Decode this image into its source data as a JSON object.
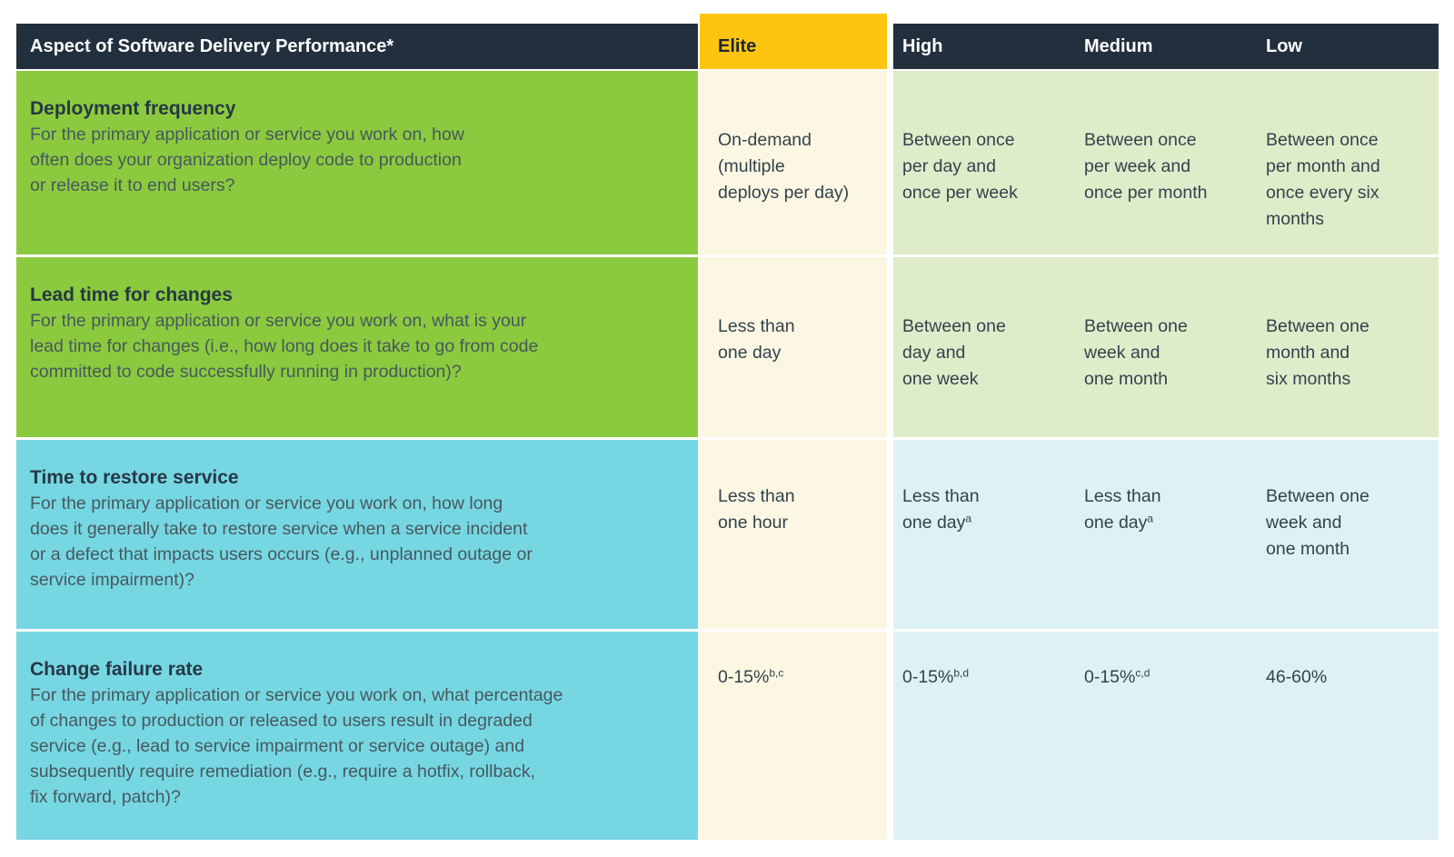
{
  "table": {
    "header": {
      "aspect": "Aspect of Software Delivery Performance*",
      "elite": "Elite",
      "high": "High",
      "medium": "Medium",
      "low": "Low"
    },
    "colors": {
      "header_bg": "#22303e",
      "elite_header_bg": "#fdc50f",
      "green_row_bg": "#8bca3e",
      "cyan_row_bg": "#76d7e3",
      "elite_cell_bg": "#fcf7e3",
      "light_green_cell_bg": "#dfecca",
      "light_blue_cell_bg": "#def1f6"
    },
    "rows": [
      {
        "title": "Deployment frequency",
        "question": "For the primary application or service you work on, how\noften does your organization deploy code to production\nor release it to end users?",
        "elite": {
          "text": "On-demand\n(multiple\ndeploys per day)"
        },
        "high": {
          "text": "Between once\nper day and\nonce per week"
        },
        "medium": {
          "text": "Between once\nper week and\nonce per month"
        },
        "low": {
          "text": "Between once\nper month and\nonce every six\nmonths"
        }
      },
      {
        "title": "Lead time for changes",
        "question": "For the primary application or service you work on, what is your\nlead time for changes (i.e., how long does it take to go from code\ncommitted to code successfully running in production)?",
        "elite": {
          "text": "Less than\none day"
        },
        "high": {
          "text": "Between one\nday and\none week"
        },
        "medium": {
          "text": "Between one\nweek and\none month"
        },
        "low": {
          "text": "Between one\nmonth and\nsix months"
        }
      },
      {
        "title": "Time to restore service",
        "question": "For the primary application or service you work on, how long\ndoes it generally take to restore service when a service incident\nor a defect that impacts users occurs (e.g., unplanned outage or\nservice impairment)?",
        "elite": {
          "text": "Less than\none hour"
        },
        "high": {
          "text": "Less than\none day",
          "sup": "a"
        },
        "medium": {
          "text": "Less than\none day",
          "sup": "a"
        },
        "low": {
          "text": "Between one\nweek and\none month"
        }
      },
      {
        "title": "Change failure rate",
        "question": "For the primary application or service you work on, what percentage\nof changes to production or released to users result in degraded\nservice (e.g., lead to service impairment or service outage) and\nsubsequently require remediation (e.g., require a hotfix, rollback,\nfix forward, patch)?",
        "elite": {
          "text": "0-15%",
          "sup": "b,c"
        },
        "high": {
          "text": "0-15%",
          "sup": "b,d"
        },
        "medium": {
          "text": "0-15%",
          "sup": "c,d"
        },
        "low": {
          "text": "46-60%"
        }
      }
    ]
  }
}
